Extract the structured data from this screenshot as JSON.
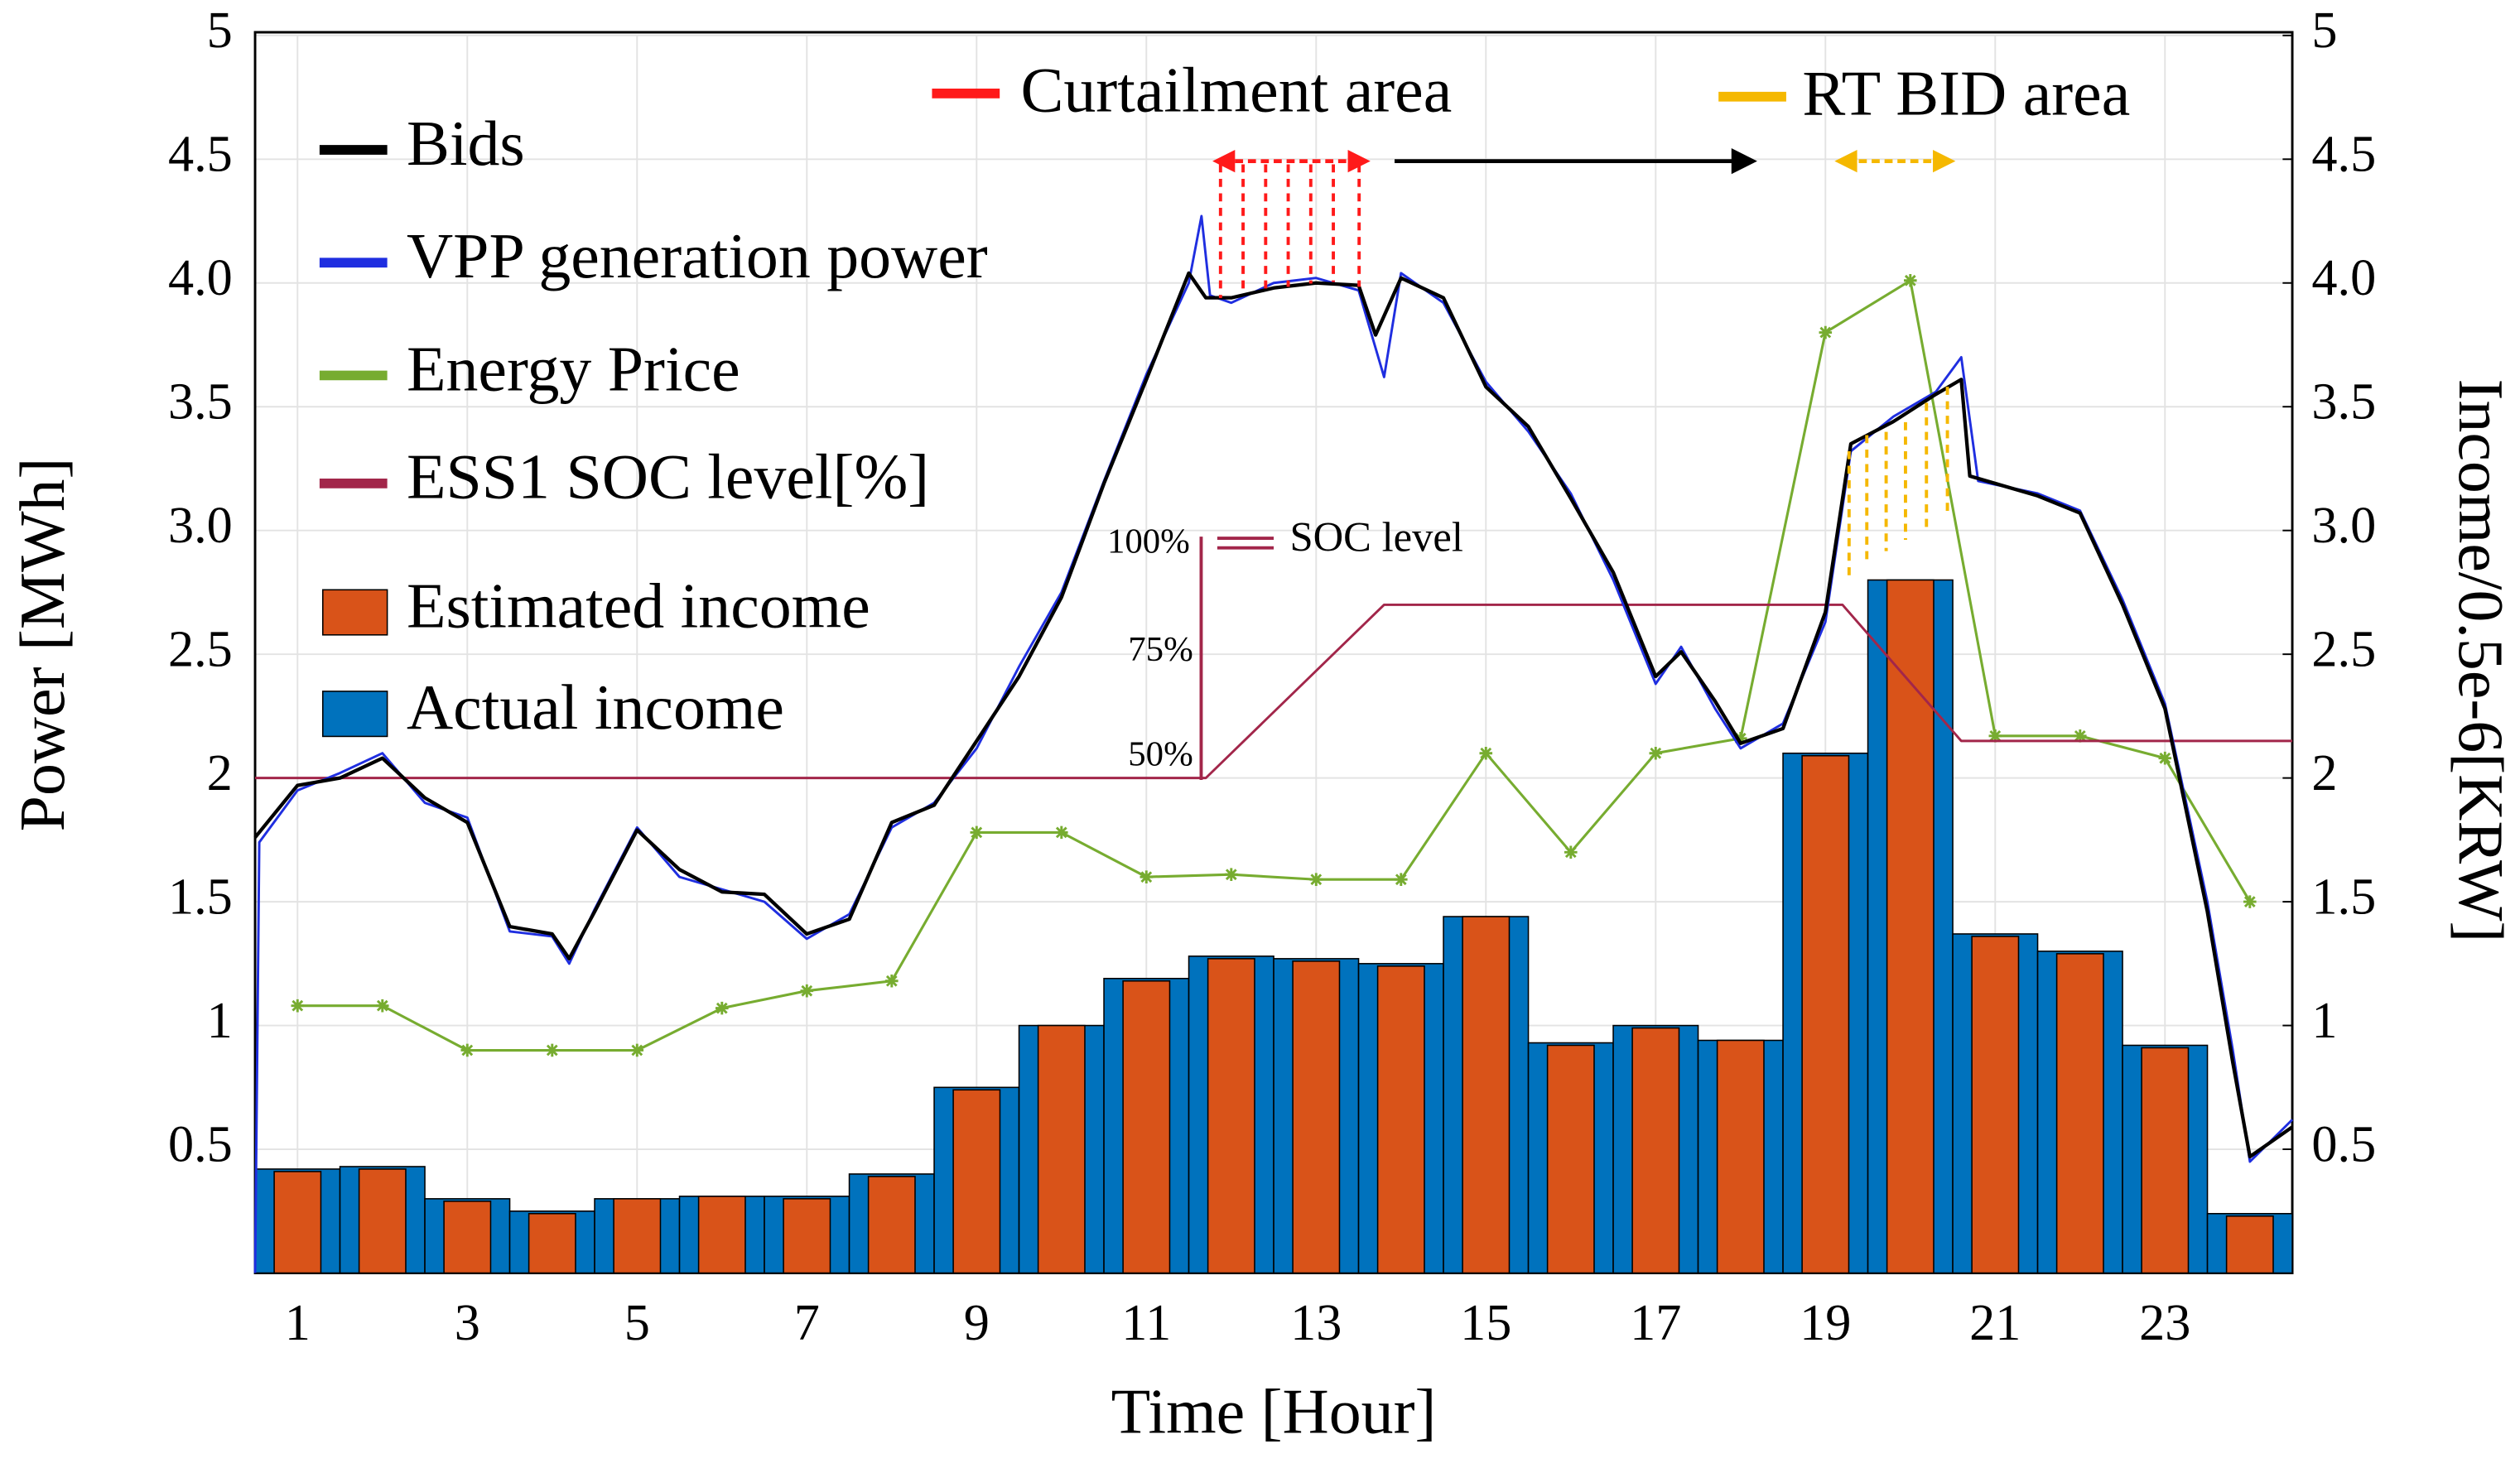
{
  "chart_data": {
    "type": "combo",
    "xlabel": "Time [Hour]",
    "ylabel": "Power [MWh]",
    "y2label": "Income/0.5e-6[KRW]",
    "xlim": [
      0.5,
      24.5
    ],
    "xticks": [
      1,
      3,
      5,
      7,
      9,
      11,
      13,
      15,
      17,
      19,
      21,
      23
    ],
    "ylim": [
      0,
      5
    ],
    "yticks": [
      {
        "value": 0.5,
        "label": "0.5"
      },
      1,
      1.5,
      2,
      2.5,
      {
        "value": 3,
        "label": "3.0"
      },
      3.5,
      {
        "value": 4,
        "label": "4.0"
      },
      4.5,
      5
    ],
    "y2lim": [
      0,
      5
    ],
    "y2ticks": [
      {
        "value": 0.5,
        "label": "0.5"
      },
      1,
      1.5,
      2,
      2.5,
      {
        "value": 3,
        "label": "3.0"
      },
      3.5,
      {
        "value": 4,
        "label": "4.0"
      },
      4.5,
      5
    ],
    "grid": true,
    "legend": "upper left",
    "annotations": [
      "Curtailment area",
      "RT BID area",
      "SOC level",
      "100%",
      "75%",
      "50%"
    ],
    "series": [
      {
        "name": "Bids",
        "type": "line",
        "color": "#000000",
        "x": [
          0.5,
          1,
          1.5,
          2,
          2.5,
          3,
          3.5,
          4,
          4.2,
          4.5,
          5,
          5.5,
          6,
          6.5,
          7,
          7.5,
          8,
          8.5,
          9,
          9.5,
          10,
          10.5,
          11,
          11.5,
          11.7,
          12,
          12.5,
          13,
          13.5,
          13.7,
          14,
          14.5,
          15,
          15.5,
          16,
          16.5,
          17,
          17.3,
          17.7,
          18,
          18.5,
          19,
          19.3,
          19.8,
          20.3,
          20.6,
          20.7,
          21.5,
          22,
          22.5,
          23,
          23.5,
          23.8,
          24,
          24.5
        ],
        "values": [
          1.76,
          1.97,
          2.0,
          2.08,
          1.92,
          1.82,
          1.4,
          1.37,
          1.27,
          1.46,
          1.79,
          1.63,
          1.54,
          1.53,
          1.37,
          1.43,
          1.82,
          1.89,
          2.15,
          2.41,
          2.73,
          3.19,
          3.61,
          4.04,
          3.94,
          3.94,
          3.98,
          4.0,
          3.99,
          3.79,
          4.02,
          3.94,
          3.58,
          3.42,
          3.13,
          2.83,
          2.41,
          2.51,
          2.31,
          2.14,
          2.2,
          2.67,
          3.35,
          3.44,
          3.55,
          3.61,
          3.22,
          3.14,
          3.07,
          2.7,
          2.28,
          1.46,
          0.85,
          0.47,
          0.59
        ]
      },
      {
        "name": "VPP generation power",
        "type": "line",
        "color": "#1f2ee0",
        "x": [
          0.5,
          0.55,
          1,
          1.5,
          2,
          2.5,
          3,
          3.5,
          4,
          4.2,
          4.5,
          5,
          5.5,
          6,
          6.5,
          7,
          7.5,
          8,
          8.5,
          9,
          9.5,
          10,
          10.5,
          11,
          11.5,
          11.65,
          11.75,
          12,
          12.5,
          13,
          13.5,
          13.8,
          14,
          14.5,
          15,
          15.5,
          16,
          16.5,
          17,
          17.3,
          17.7,
          18,
          18.5,
          19,
          19.3,
          19.8,
          20.3,
          20.6,
          20.8,
          21.5,
          22,
          22.5,
          23,
          23.5,
          23.8,
          24,
          24.5
        ],
        "values": [
          0,
          1.74,
          1.95,
          2.02,
          2.1,
          1.9,
          1.84,
          1.38,
          1.36,
          1.25,
          1.47,
          1.8,
          1.6,
          1.55,
          1.5,
          1.35,
          1.45,
          1.8,
          1.9,
          2.12,
          2.45,
          2.75,
          3.2,
          3.63,
          4.0,
          4.27,
          3.95,
          3.92,
          4.0,
          4.02,
          3.97,
          3.62,
          4.04,
          3.92,
          3.6,
          3.4,
          3.15,
          2.8,
          2.38,
          2.53,
          2.28,
          2.12,
          2.22,
          2.63,
          3.32,
          3.46,
          3.56,
          3.7,
          3.2,
          3.15,
          3.08,
          2.72,
          2.3,
          1.5,
          0.9,
          0.45,
          0.62
        ]
      },
      {
        "name": "Energy Price",
        "type": "marker-line",
        "color": "#77ac30",
        "x": [
          1,
          2,
          3,
          4,
          5,
          6,
          7,
          8,
          9,
          10,
          11,
          12,
          13,
          14,
          15,
          16,
          17,
          18,
          19,
          20,
          21,
          22,
          23,
          24
        ],
        "values": [
          1.08,
          1.08,
          0.9,
          0.9,
          0.9,
          1.07,
          1.14,
          1.18,
          1.78,
          1.78,
          1.6,
          1.61,
          1.59,
          1.59,
          2.1,
          1.7,
          2.1,
          2.16,
          3.8,
          4.01,
          2.17,
          2.17,
          2.08,
          1.5
        ]
      },
      {
        "name": "ESS1 SOC level[%]",
        "type": "line",
        "color": "#a2264a",
        "x": [
          0.5,
          11.7,
          13.8,
          19.2,
          20.6,
          24.5
        ],
        "values": [
          2.0,
          2.0,
          2.7,
          2.7,
          2.15,
          2.15
        ]
      },
      {
        "name": "Estimated income",
        "type": "bar",
        "axis": "y2",
        "color": "#d95319",
        "width": 0.55,
        "x": [
          1,
          2,
          3,
          4,
          5,
          6,
          7,
          8,
          9,
          10,
          11,
          12,
          13,
          14,
          15,
          16,
          17,
          18,
          19,
          20,
          21,
          22,
          23,
          24
        ],
        "values": [
          0.41,
          0.42,
          0.29,
          0.24,
          0.3,
          0.31,
          0.3,
          0.39,
          0.74,
          1.0,
          1.18,
          1.27,
          1.26,
          1.24,
          1.44,
          0.92,
          0.99,
          0.94,
          2.09,
          2.8,
          1.36,
          1.29,
          0.91,
          0.23
        ]
      },
      {
        "name": "Actual income",
        "type": "bar",
        "axis": "y2",
        "color": "#0072bd",
        "width": 1,
        "x": [
          1,
          2,
          3,
          4,
          5,
          6,
          7,
          8,
          9,
          10,
          11,
          12,
          13,
          14,
          15,
          16,
          17,
          18,
          19,
          20,
          21,
          22,
          23,
          24
        ],
        "values": [
          0.42,
          0.43,
          0.3,
          0.25,
          0.3,
          0.31,
          0.31,
          0.4,
          0.75,
          1.0,
          1.19,
          1.28,
          1.27,
          1.25,
          1.44,
          0.93,
          1.0,
          0.94,
          2.1,
          2.8,
          1.37,
          1.3,
          0.92,
          0.24
        ]
      }
    ]
  }
}
